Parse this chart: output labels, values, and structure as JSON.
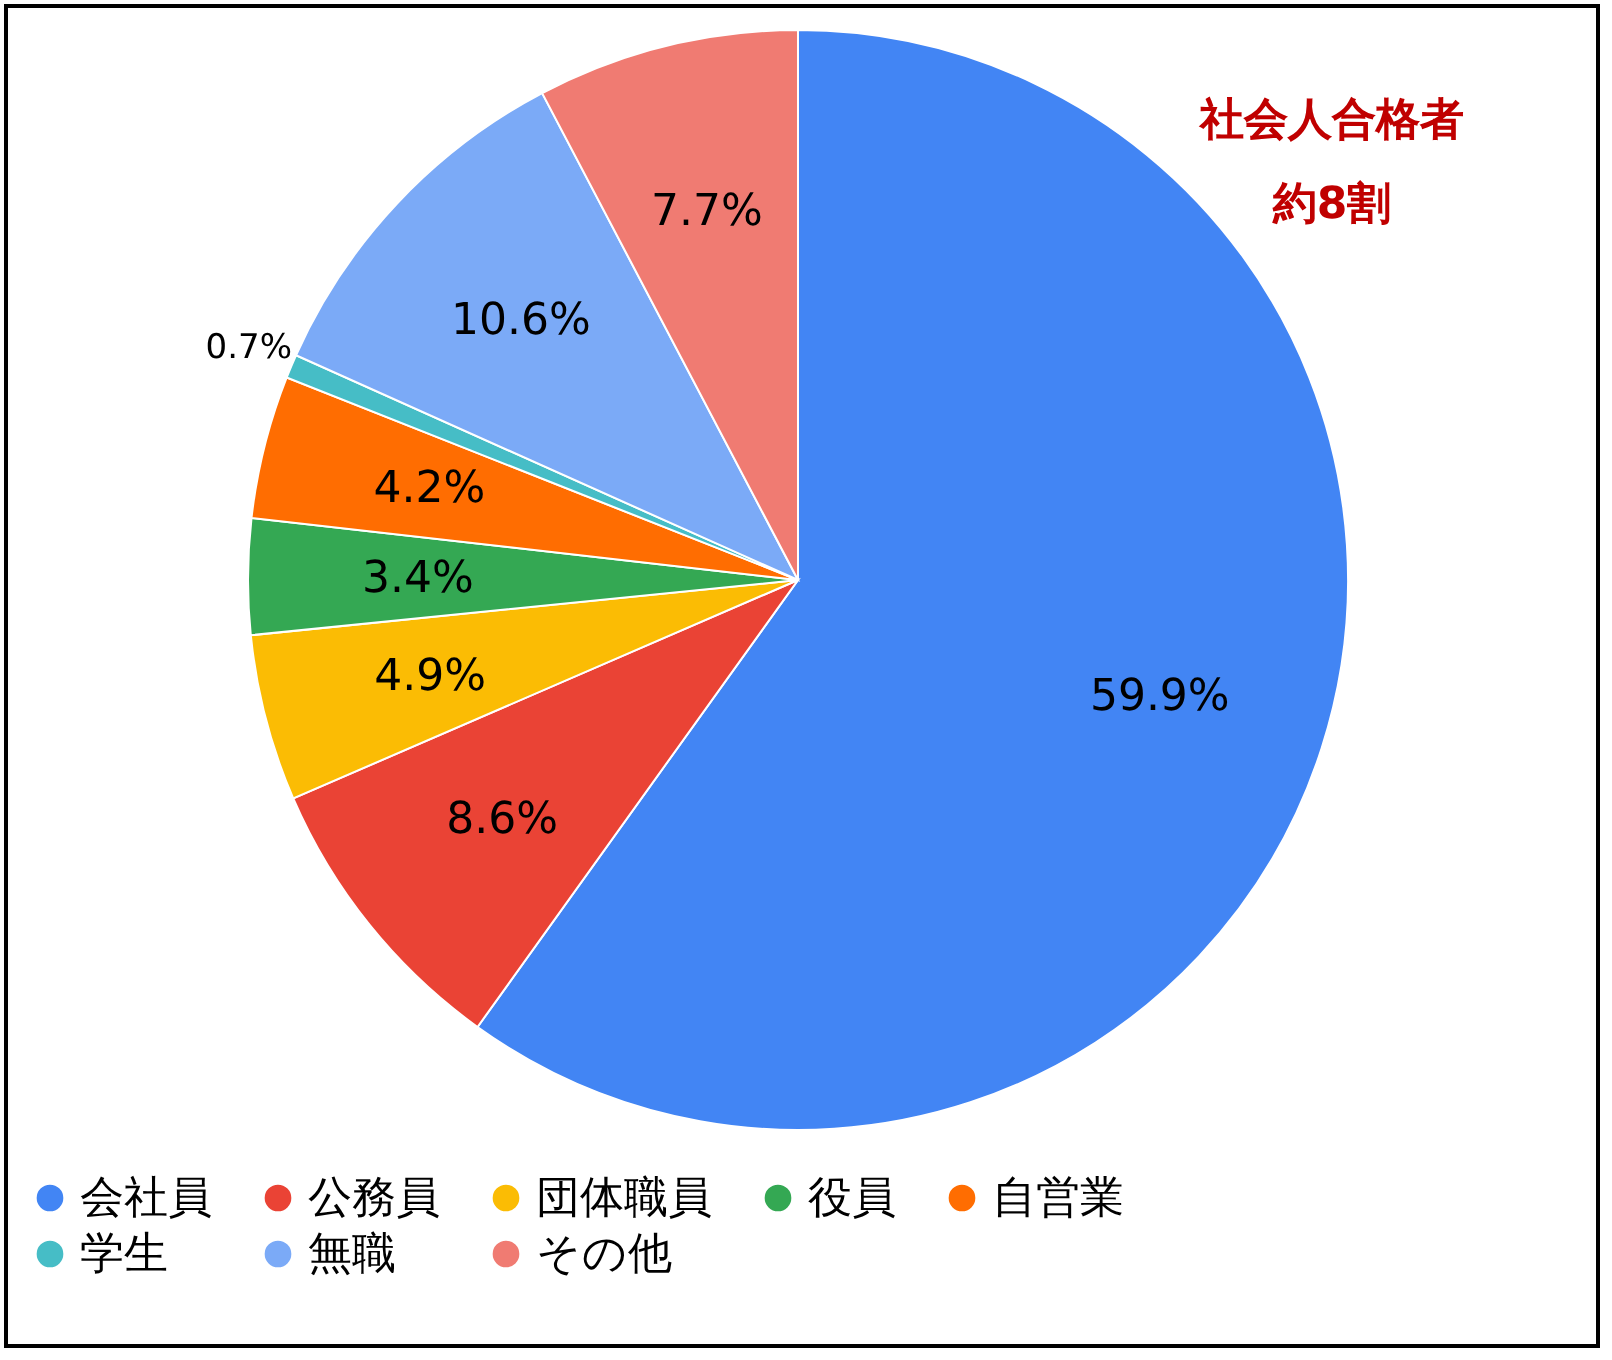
{
  "chart_data": {
    "type": "pie",
    "categories": [
      "会社員",
      "公務員",
      "団体職員",
      "役員",
      "自営業",
      "学生",
      "無職",
      "その他"
    ],
    "values": [
      59.9,
      8.6,
      4.9,
      3.4,
      4.2,
      0.7,
      10.6,
      7.7
    ],
    "value_labels": [
      "59.9%",
      "8.6%",
      "4.9%",
      "3.4%",
      "4.2%",
      "0.7%",
      "10.6%",
      "7.7%"
    ],
    "colors": [
      "#4285f4",
      "#ea4335",
      "#fbbc04",
      "#34a853",
      "#ff6d01",
      "#46bdc6",
      "#7baaf7",
      "#f07b72"
    ],
    "annotations": [
      "社会人合格者",
      "約8割"
    ],
    "legend": "bottom"
  }
}
